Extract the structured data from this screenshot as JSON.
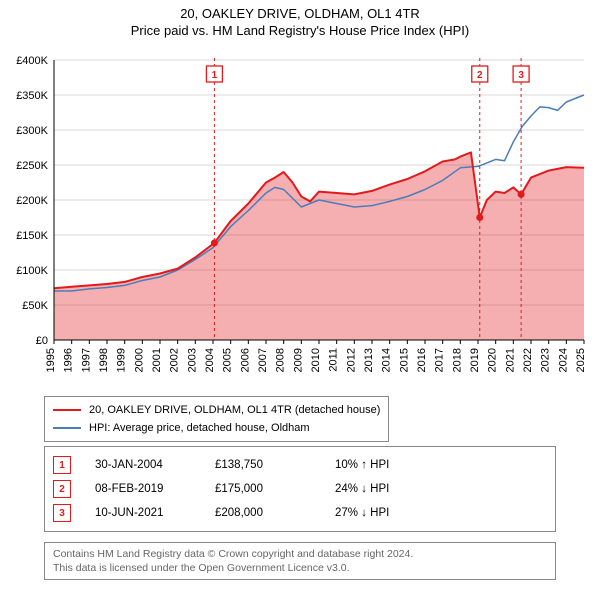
{
  "header": {
    "title": "20, OAKLEY DRIVE, OLDHAM, OL1 4TR",
    "subtitle": "Price paid vs. HM Land Registry's House Price Index (HPI)"
  },
  "chart": {
    "type": "line",
    "background_color": "#ffffff",
    "plot_border_color": "#888888",
    "grid_color": "#d9d9d9",
    "x": {
      "min": 1995,
      "max": 2025,
      "tick_step": 1,
      "label_fontsize": 11,
      "label_color": "#000000"
    },
    "y": {
      "min": 0,
      "max": 400000,
      "tick_step": 50000,
      "tick_labels": [
        "£0",
        "£50K",
        "£100K",
        "£150K",
        "£200K",
        "£250K",
        "£300K",
        "£350K",
        "£400K"
      ],
      "label_fontsize": 11,
      "label_color": "#000000"
    },
    "series": [
      {
        "name": "20, OAKLEY DRIVE, OLDHAM, OL1 4TR (detached house)",
        "color": "#e31a1c",
        "line_width": 2,
        "fill_gap": true,
        "gap_color": "#e31a1c",
        "gap_opacity": 0.35,
        "points": [
          [
            1995,
            74000
          ],
          [
            1996,
            76000
          ],
          [
            1997,
            78000
          ],
          [
            1998,
            80000
          ],
          [
            1999,
            83000
          ],
          [
            2000,
            90000
          ],
          [
            2001,
            95000
          ],
          [
            2002,
            102000
          ],
          [
            2003,
            118000
          ],
          [
            2004.08,
            138750
          ],
          [
            2005,
            170000
          ],
          [
            2006,
            195000
          ],
          [
            2007,
            225000
          ],
          [
            2007.5,
            232000
          ],
          [
            2008,
            240000
          ],
          [
            2008.5,
            225000
          ],
          [
            2009,
            205000
          ],
          [
            2009.5,
            198000
          ],
          [
            2010,
            212000
          ],
          [
            2011,
            210000
          ],
          [
            2012,
            208000
          ],
          [
            2013,
            213000
          ],
          [
            2014,
            222000
          ],
          [
            2015,
            230000
          ],
          [
            2016,
            241000
          ],
          [
            2017,
            255000
          ],
          [
            2017.7,
            258000
          ],
          [
            2018,
            262000
          ],
          [
            2018.6,
            268000
          ],
          [
            2019.1,
            175000
          ],
          [
            2019.5,
            200000
          ],
          [
            2020,
            212000
          ],
          [
            2020.5,
            210000
          ],
          [
            2021,
            218000
          ],
          [
            2021.44,
            208000
          ],
          [
            2022,
            232000
          ],
          [
            2023,
            242000
          ],
          [
            2024,
            247000
          ],
          [
            2025,
            246000
          ]
        ]
      },
      {
        "name": "HPI: Average price, detached house, Oldham",
        "color": "#4a7ebb",
        "line_width": 1.5,
        "points": [
          [
            1995,
            70000
          ],
          [
            1996,
            70000
          ],
          [
            1997,
            73000
          ],
          [
            1998,
            75000
          ],
          [
            1999,
            78000
          ],
          [
            2000,
            85000
          ],
          [
            2001,
            90000
          ],
          [
            2002,
            100000
          ],
          [
            2003,
            115000
          ],
          [
            2004,
            132000
          ],
          [
            2005,
            162000
          ],
          [
            2006,
            185000
          ],
          [
            2007,
            210000
          ],
          [
            2007.5,
            218000
          ],
          [
            2008,
            215000
          ],
          [
            2009,
            190000
          ],
          [
            2010,
            200000
          ],
          [
            2011,
            195000
          ],
          [
            2012,
            190000
          ],
          [
            2013,
            192000
          ],
          [
            2014,
            198000
          ],
          [
            2015,
            205000
          ],
          [
            2016,
            215000
          ],
          [
            2017,
            228000
          ],
          [
            2018,
            246000
          ],
          [
            2019,
            248000
          ],
          [
            2020,
            258000
          ],
          [
            2020.5,
            256000
          ],
          [
            2021,
            283000
          ],
          [
            2021.5,
            305000
          ],
          [
            2022,
            320000
          ],
          [
            2022.5,
            333000
          ],
          [
            2023,
            332000
          ],
          [
            2023.5,
            328000
          ],
          [
            2024,
            340000
          ],
          [
            2024.5,
            345000
          ],
          [
            2025,
            350000
          ]
        ]
      }
    ],
    "event_markers": [
      {
        "label": "1",
        "x": 2004.08,
        "y": 138750,
        "color": "#e31a1c"
      },
      {
        "label": "2",
        "x": 2019.1,
        "y": 175000,
        "color": "#e31a1c"
      },
      {
        "label": "3",
        "x": 2021.44,
        "y": 208000,
        "color": "#e31a1c"
      }
    ],
    "marker_box_badge": {
      "font_size": 10,
      "border_width": 1.3
    }
  },
  "legend": {
    "items": [
      {
        "label": "20, OAKLEY DRIVE, OLDHAM, OL1 4TR (detached house)",
        "color": "#e31a1c"
      },
      {
        "label": "HPI: Average price, detached house, Oldham",
        "color": "#4a7ebb"
      }
    ]
  },
  "sales": [
    {
      "badge": "1",
      "badge_color": "#e31a1c",
      "date": "30-JAN-2004",
      "price": "£138,750",
      "diff": "10% ↑ HPI"
    },
    {
      "badge": "2",
      "badge_color": "#e31a1c",
      "date": "08-FEB-2019",
      "price": "£175,000",
      "diff": "24% ↓ HPI"
    },
    {
      "badge": "3",
      "badge_color": "#e31a1c",
      "date": "10-JUN-2021",
      "price": "£208,000",
      "diff": "27% ↓ HPI"
    }
  ],
  "footer": {
    "line1": "Contains HM Land Registry data © Crown copyright and database right 2024.",
    "line2": "This data is licensed under the Open Government Licence v3.0."
  }
}
